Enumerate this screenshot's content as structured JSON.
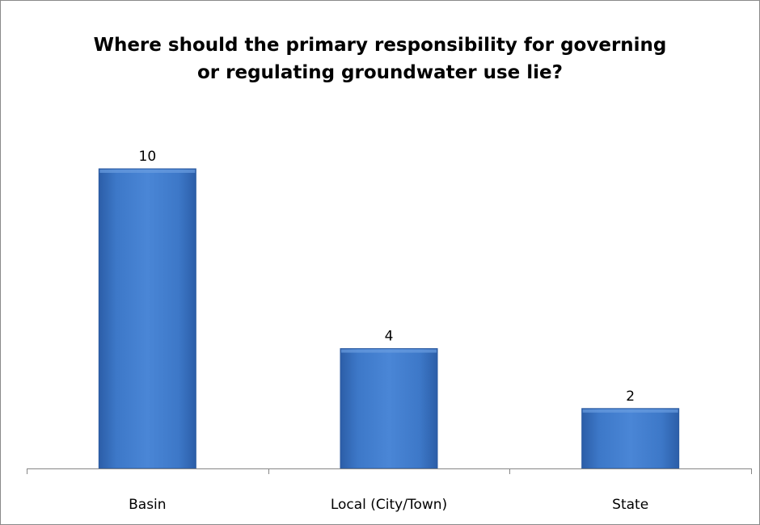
{
  "chart_data": {
    "type": "bar",
    "title": [
      "Where should the primary responsibility for governing",
      "or regulating groundwater use lie?"
    ],
    "categories": [
      "Basin",
      "Local (City/Town)",
      "State"
    ],
    "values": [
      10,
      4,
      2
    ],
    "xlabel": "",
    "ylabel": "",
    "ylim": [
      0,
      10
    ],
    "grid": false,
    "legend": "none",
    "bar_color": "#3a73c2",
    "bar_edge_color": "#2b5aa0"
  }
}
